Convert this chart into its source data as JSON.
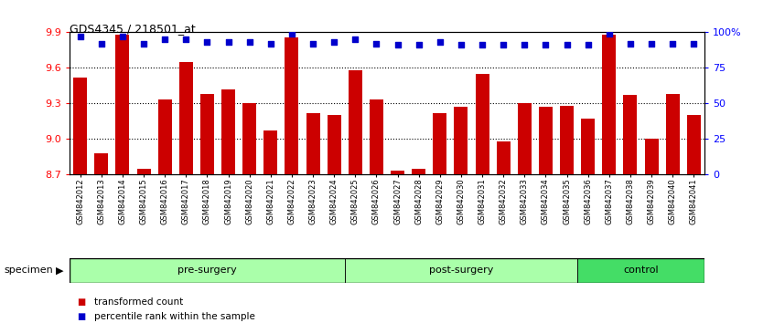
{
  "title": "GDS4345 / 218501_at",
  "categories": [
    "GSM842012",
    "GSM842013",
    "GSM842014",
    "GSM842015",
    "GSM842016",
    "GSM842017",
    "GSM842018",
    "GSM842019",
    "GSM842020",
    "GSM842021",
    "GSM842022",
    "GSM842023",
    "GSM842024",
    "GSM842025",
    "GSM842026",
    "GSM842027",
    "GSM842028",
    "GSM842029",
    "GSM842030",
    "GSM842031",
    "GSM842032",
    "GSM842033",
    "GSM842034",
    "GSM842035",
    "GSM842036",
    "GSM842037",
    "GSM842038",
    "GSM842039",
    "GSM842040",
    "GSM842041"
  ],
  "bar_values": [
    9.52,
    8.88,
    9.88,
    8.75,
    9.33,
    9.65,
    9.38,
    9.42,
    9.3,
    9.07,
    9.86,
    9.22,
    9.2,
    9.58,
    9.33,
    8.73,
    8.75,
    9.22,
    9.27,
    9.55,
    8.98,
    9.3,
    9.27,
    9.28,
    9.17,
    9.88,
    9.37,
    9.0,
    9.38,
    9.2
  ],
  "percentile_values": [
    97,
    92,
    97,
    92,
    95,
    95,
    93,
    93,
    93,
    92,
    99,
    92,
    93,
    95,
    92,
    91,
    91,
    93,
    91,
    91,
    91,
    91,
    91,
    91,
    91,
    99,
    92,
    92,
    92,
    92
  ],
  "group_labels": [
    "pre-surgery",
    "post-surgery",
    "control"
  ],
  "group_ranges": [
    [
      0,
      13
    ],
    [
      13,
      24
    ],
    [
      24,
      30
    ]
  ],
  "group_colors_light": "#AAFFAA",
  "group_color_dark": "#44DD66",
  "bar_color": "#CC0000",
  "marker_color": "#0000CC",
  "ylim_left": [
    8.7,
    9.9
  ],
  "yticks_left": [
    8.7,
    9.0,
    9.3,
    9.6,
    9.9
  ],
  "ylim_right": [
    0,
    100
  ],
  "yticks_right": [
    0,
    25,
    50,
    75,
    100
  ],
  "ytick_labels_right": [
    "0",
    "25",
    "50",
    "75",
    "100%"
  ],
  "specimen_label": "specimen",
  "legend_entries": [
    "transformed count",
    "percentile rank within the sample"
  ],
  "legend_colors": [
    "#CC0000",
    "#0000CC"
  ],
  "bg_color": "#FFFFFF",
  "grid_lines": [
    9.0,
    9.3,
    9.6
  ]
}
